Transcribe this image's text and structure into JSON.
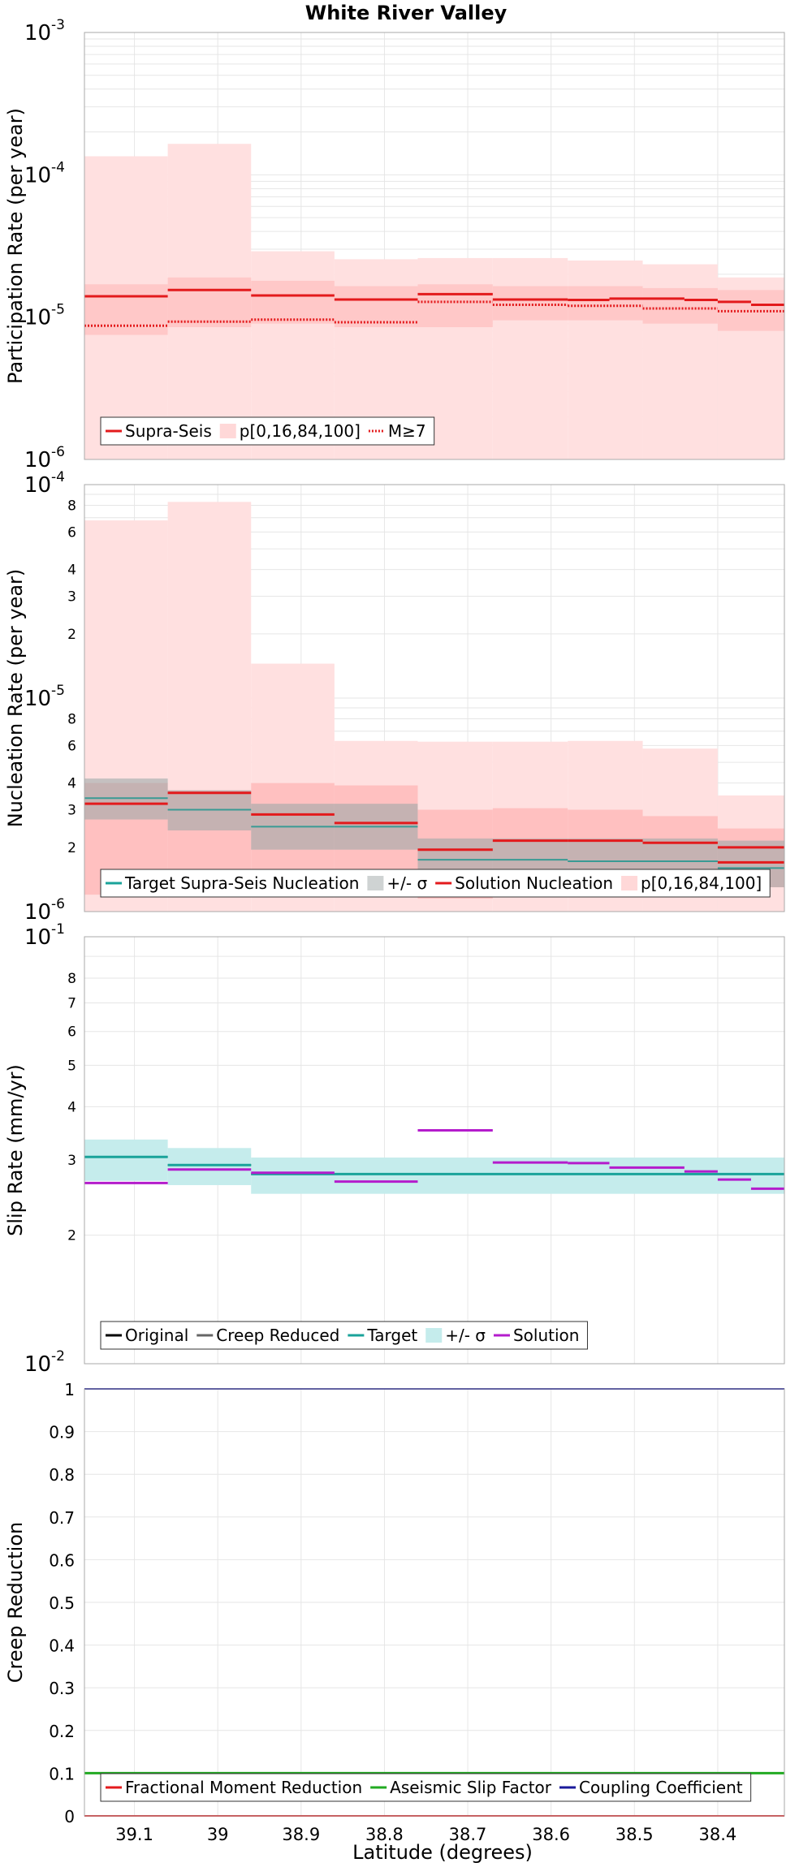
{
  "title": "White River Valley",
  "xlabel": "Latitude (degrees)",
  "x_ticks": [
    "39.1",
    "39",
    "38.9",
    "38.8",
    "38.7",
    "38.6",
    "38.5",
    "38.4"
  ],
  "x_tick_values": [
    39.1,
    39.0,
    38.9,
    38.8,
    38.7,
    38.6,
    38.5,
    38.4
  ],
  "xlim": [
    39.16,
    38.32
  ],
  "colors": {
    "red": "#e31a1c",
    "band_light": "#ffe0e0",
    "band_mid": "#ffc4c4",
    "teal": "#1aa39a",
    "teal_band": "#c5ecec",
    "gray_band": "#cfd3d3",
    "purple": "#b41ccc",
    "green": "#22aa22",
    "navy": "#1a1a9a"
  },
  "chart_data": [
    {
      "type": "line",
      "panel": "participation",
      "ylabel": "Participation Rate (per year)",
      "yscale": "log",
      "ylim": [
        1e-06,
        0.001
      ],
      "y_ticks": [
        {
          "value": 1e-06,
          "base": "10",
          "exp": "-6"
        },
        {
          "value": 1e-05,
          "base": "10",
          "exp": "-5"
        },
        {
          "value": 0.0001,
          "base": "10",
          "exp": "-4"
        },
        {
          "value": 0.001,
          "base": "10",
          "exp": "-3"
        }
      ],
      "x_bins": [
        [
          39.16,
          39.06
        ],
        [
          39.06,
          38.96
        ],
        [
          38.96,
          38.86
        ],
        [
          38.86,
          38.76
        ],
        [
          38.76,
          38.67
        ],
        [
          38.67,
          38.58
        ],
        [
          38.58,
          38.49
        ],
        [
          38.49,
          38.4
        ],
        [
          38.4,
          38.32
        ]
      ],
      "p0_p100": [
        [
          1e-06,
          0.000135
        ],
        [
          1e-06,
          0.000165
        ],
        [
          1e-06,
          2.9e-05
        ],
        [
          1e-06,
          2.55e-05
        ],
        [
          1e-06,
          2.6e-05
        ],
        [
          1e-06,
          2.6e-05
        ],
        [
          1e-06,
          2.5e-05
        ],
        [
          1e-06,
          2.35e-05
        ],
        [
          1e-06,
          1.9e-05
        ]
      ],
      "p16_p84": [
        [
          7.5e-06,
          1.7e-05
        ],
        [
          8.5e-06,
          1.9e-05
        ],
        [
          9e-06,
          1.8e-05
        ],
        [
          8.5e-06,
          1.65e-05
        ],
        [
          8.5e-06,
          1.7e-05
        ],
        [
          9.5e-06,
          1.65e-05
        ],
        [
          9.5e-06,
          1.65e-05
        ],
        [
          9e-06,
          1.6e-05
        ],
        [
          8e-06,
          1.55e-05
        ]
      ],
      "supra_seis": [
        1.4e-05,
        1.55e-05,
        1.42e-05,
        1.33e-05,
        1.45e-05,
        1.33e-05,
        1.32e-05,
        1.35e-05,
        1.32e-05,
        1.28e-05,
        1.22e-05
      ],
      "supra_seis_bins": [
        [
          39.16,
          39.06
        ],
        [
          39.06,
          38.96
        ],
        [
          38.96,
          38.86
        ],
        [
          38.86,
          38.76
        ],
        [
          38.76,
          38.67
        ],
        [
          38.67,
          38.58
        ],
        [
          38.58,
          38.53
        ],
        [
          38.53,
          38.44
        ],
        [
          38.44,
          38.4
        ],
        [
          38.4,
          38.36
        ],
        [
          38.36,
          38.32
        ]
      ],
      "m7_bins": [
        [
          39.16,
          39.06
        ],
        [
          39.06,
          38.96
        ],
        [
          38.96,
          38.86
        ],
        [
          38.86,
          38.76
        ],
        [
          38.76,
          38.67
        ],
        [
          38.67,
          38.58
        ],
        [
          38.58,
          38.49
        ],
        [
          38.49,
          38.4
        ],
        [
          38.4,
          38.32
        ]
      ],
      "m7": [
        8.7e-06,
        9.3e-06,
        9.6e-06,
        9.2e-06,
        1.28e-05,
        1.22e-05,
        1.2e-05,
        1.15e-05,
        1.1e-05
      ],
      "legend": [
        {
          "label": "Supra-Seis",
          "kind": "line",
          "color": "#e31a1c"
        },
        {
          "label": "p[0,16,84,100]",
          "kind": "band",
          "color": "#ffd8d8"
        },
        {
          "label": "M≥7",
          "kind": "dotted",
          "color": "#e31a1c"
        }
      ]
    },
    {
      "type": "line",
      "panel": "nucleation",
      "ylabel": "Nucleation Rate (per year)",
      "yscale": "log",
      "ylim": [
        1e-06,
        0.0001
      ],
      "y_ticks": [
        {
          "value": 1e-06,
          "base": "10",
          "exp": "-6"
        },
        {
          "value": 1e-05,
          "base": "10",
          "exp": "-5"
        },
        {
          "value": 0.0001,
          "base": "10",
          "exp": "-4"
        }
      ],
      "y_minor_labels": [
        {
          "value": 2e-06,
          "label": "2"
        },
        {
          "value": 3e-06,
          "label": "3"
        },
        {
          "value": 4e-06,
          "label": "4"
        },
        {
          "value": 6e-06,
          "label": "6"
        },
        {
          "value": 8e-06,
          "label": "8"
        },
        {
          "value": 2e-05,
          "label": "2"
        },
        {
          "value": 3e-05,
          "label": "3"
        },
        {
          "value": 4e-05,
          "label": "4"
        },
        {
          "value": 6e-05,
          "label": "6"
        },
        {
          "value": 8e-05,
          "label": "8"
        }
      ],
      "x_bins": [
        [
          39.16,
          39.06
        ],
        [
          39.06,
          38.96
        ],
        [
          38.96,
          38.86
        ],
        [
          38.86,
          38.76
        ],
        [
          38.76,
          38.67
        ],
        [
          38.67,
          38.58
        ],
        [
          38.58,
          38.49
        ],
        [
          38.49,
          38.4
        ],
        [
          38.4,
          38.32
        ]
      ],
      "p0_p100": [
        [
          1e-06,
          6.8e-05
        ],
        [
          1e-06,
          8.3e-05
        ],
        [
          1e-06,
          1.45e-05
        ],
        [
          1e-06,
          6.3e-06
        ],
        [
          1e-06,
          6.25e-06
        ],
        [
          1e-06,
          6.25e-06
        ],
        [
          1e-06,
          6.3e-06
        ],
        [
          1e-06,
          5.8e-06
        ],
        [
          1e-06,
          3.5e-06
        ]
      ],
      "p16_p84": [
        [
          1.2e-06,
          4e-06
        ],
        [
          1.45e-06,
          3.7e-06
        ],
        [
          1.4e-06,
          4e-06
        ],
        [
          1.3e-06,
          3.9e-06
        ],
        [
          1.15e-06,
          3e-06
        ],
        [
          1.2e-06,
          3.05e-06
        ],
        [
          1.2e-06,
          3e-06
        ],
        [
          1.25e-06,
          2.8e-06
        ],
        [
          1.3e-06,
          2.45e-06
        ]
      ],
      "target_bins": [
        [
          39.16,
          39.06
        ],
        [
          39.06,
          38.96
        ],
        [
          38.96,
          38.86
        ],
        [
          38.86,
          38.76
        ],
        [
          38.76,
          38.58
        ],
        [
          38.58,
          38.4
        ],
        [
          38.4,
          38.32
        ]
      ],
      "target": [
        3.4e-06,
        3e-06,
        2.5e-06,
        2.5e-06,
        1.75e-06,
        1.72e-06,
        1.6e-06
      ],
      "target_sigma": [
        [
          2.7e-06,
          4.2e-06
        ],
        [
          2.4e-06,
          3.7e-06
        ],
        [
          1.95e-06,
          3.2e-06
        ],
        [
          1.95e-06,
          3.2e-06
        ],
        [
          1.4e-06,
          2.2e-06
        ],
        [
          1.35e-06,
          2.2e-06
        ],
        [
          1.3e-06,
          2.15e-06
        ]
      ],
      "solution_bins": [
        [
          39.16,
          39.06
        ],
        [
          39.06,
          38.96
        ],
        [
          38.96,
          38.86
        ],
        [
          38.86,
          38.76
        ],
        [
          38.76,
          38.67
        ],
        [
          38.67,
          38.58
        ],
        [
          38.58,
          38.49
        ],
        [
          38.49,
          38.4
        ],
        [
          38.4,
          38.32
        ]
      ],
      "solution": [
        3.2e-06,
        3.6e-06,
        2.85e-06,
        2.6e-06,
        1.95e-06,
        2.15e-06,
        2.15e-06,
        2.1e-06,
        2e-06
      ],
      "solution_tail": {
        "bin": [
          38.4,
          38.32
        ],
        "value": 1.7e-06
      },
      "legend": [
        {
          "label": "Target Supra-Seis Nucleation",
          "kind": "line",
          "color": "#1aa39a"
        },
        {
          "label": "+/- σ",
          "kind": "band",
          "color": "#cfd3d3"
        },
        {
          "label": "Solution Nucleation",
          "kind": "line",
          "color": "#e31a1c"
        },
        {
          "label": "p[0,16,84,100]",
          "kind": "band",
          "color": "#ffd8d8"
        }
      ]
    },
    {
      "type": "line",
      "panel": "slip",
      "ylabel": "Slip Rate (mm/yr)",
      "yscale": "log",
      "ylim": [
        0.01,
        0.1
      ],
      "y_ticks": [
        {
          "value": 0.01,
          "base": "10",
          "exp": "-2"
        },
        {
          "value": 0.1,
          "base": "10",
          "exp": "-1"
        }
      ],
      "y_minor_labels": [
        {
          "value": 0.02,
          "label": "2"
        },
        {
          "value": 0.03,
          "label": "3"
        },
        {
          "value": 0.04,
          "label": "4"
        },
        {
          "value": 0.05,
          "label": "5"
        },
        {
          "value": 0.06,
          "label": "6"
        },
        {
          "value": 0.07,
          "label": "7"
        },
        {
          "value": 0.08,
          "label": "8"
        }
      ],
      "target_bins": [
        [
          39.16,
          39.06
        ],
        [
          39.06,
          38.96
        ],
        [
          38.96,
          38.32
        ]
      ],
      "target": [
        0.0305,
        0.0292,
        0.0278
      ],
      "target_sigma": [
        [
          0.0268,
          0.0335
        ],
        [
          0.0262,
          0.032
        ],
        [
          0.025,
          0.0304
        ]
      ],
      "solution_bins": [
        [
          39.16,
          39.06
        ],
        [
          39.06,
          38.96
        ],
        [
          38.96,
          38.86
        ],
        [
          38.86,
          38.76
        ],
        [
          38.76,
          38.67
        ],
        [
          38.67,
          38.58
        ],
        [
          38.58,
          38.49
        ],
        [
          38.49,
          38.4
        ],
        [
          38.4,
          38.32
        ]
      ],
      "solution": [
        0.0265,
        0.0285,
        0.028,
        0.0267,
        0.0352,
        0.0296,
        0.0288,
        0.0282,
        0.0257
      ],
      "solution_segments": [
        [
          39.16,
          39.06,
          0.0265
        ],
        [
          39.06,
          38.96,
          0.0285
        ],
        [
          38.96,
          38.86,
          0.028
        ],
        [
          38.86,
          38.76,
          0.0267
        ],
        [
          38.76,
          38.67,
          0.0352
        ],
        [
          38.67,
          38.58,
          0.0296
        ],
        [
          38.58,
          38.53,
          0.0295
        ],
        [
          38.53,
          38.44,
          0.0288
        ],
        [
          38.44,
          38.4,
          0.0282
        ],
        [
          38.4,
          38.36,
          0.027
        ],
        [
          38.36,
          38.32,
          0.0257
        ]
      ],
      "legend": [
        {
          "label": "Original",
          "kind": "line",
          "color": "#000000"
        },
        {
          "label": "Creep Reduced",
          "kind": "line",
          "color": "#666666"
        },
        {
          "label": "Target",
          "kind": "line",
          "color": "#1aa39a"
        },
        {
          "label": "+/- σ",
          "kind": "band",
          "color": "#c5ecec"
        },
        {
          "label": "Solution",
          "kind": "line",
          "color": "#b41ccc"
        }
      ]
    },
    {
      "type": "line",
      "panel": "creep",
      "ylabel": "Creep Reduction",
      "yscale": "linear",
      "ylim": [
        0,
        1
      ],
      "y_ticks": [
        {
          "value": 0,
          "label": "0"
        },
        {
          "value": 0.1,
          "label": "0.1"
        },
        {
          "value": 0.2,
          "label": "0.2"
        },
        {
          "value": 0.3,
          "label": "0.3"
        },
        {
          "value": 0.4,
          "label": "0.4"
        },
        {
          "value": 0.5,
          "label": "0.5"
        },
        {
          "value": 0.6,
          "label": "0.6"
        },
        {
          "value": 0.7,
          "label": "0.7"
        },
        {
          "value": 0.8,
          "label": "0.8"
        },
        {
          "value": 0.9,
          "label": "0.9"
        },
        {
          "value": 1,
          "label": "1"
        }
      ],
      "fractional_moment_reduction": 0.0,
      "aseismic_slip_factor": 0.1,
      "coupling_coefficient": 1.0,
      "legend": [
        {
          "label": "Fractional Moment Reduction",
          "kind": "line",
          "color": "#e31a1c"
        },
        {
          "label": "Aseismic Slip Factor",
          "kind": "line",
          "color": "#22aa22"
        },
        {
          "label": "Coupling Coefficient",
          "kind": "line",
          "color": "#1a1a9a"
        }
      ]
    }
  ]
}
